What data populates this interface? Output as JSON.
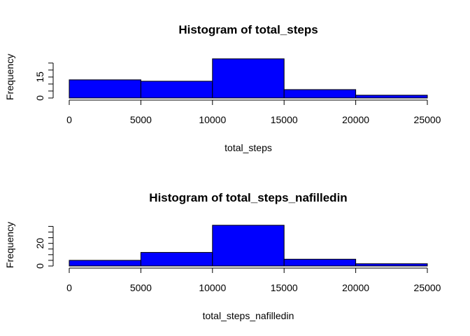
{
  "chart_data": [
    {
      "type": "bar",
      "title": "Histogram of total_steps",
      "xlabel": "total_steps",
      "ylabel": "Frequency",
      "bins": [
        {
          "start": 0,
          "end": 5000,
          "count": 13
        },
        {
          "start": 5000,
          "end": 10000,
          "count": 12
        },
        {
          "start": 10000,
          "end": 15000,
          "count": 28
        },
        {
          "start": 15000,
          "end": 20000,
          "count": 6
        },
        {
          "start": 20000,
          "end": 25000,
          "count": 2
        }
      ],
      "x_ticks": [
        {
          "value": 0,
          "label": "0"
        },
        {
          "value": 5000,
          "label": "5000"
        },
        {
          "value": 10000,
          "label": "10000"
        },
        {
          "value": 15000,
          "label": "15000"
        },
        {
          "value": 20000,
          "label": "20000"
        },
        {
          "value": 25000,
          "label": "25000"
        }
      ],
      "y_ticks": [
        0,
        5,
        10,
        15,
        20,
        25
      ],
      "y_tick_labels": [
        {
          "value": 0,
          "label": "0"
        },
        {
          "value": 15,
          "label": "15"
        }
      ],
      "xlim": [
        0,
        25000
      ],
      "ylim": [
        0,
        28
      ],
      "bar_color": "#0000ff",
      "grid": false,
      "legend": "none"
    },
    {
      "type": "bar",
      "title": "Histogram of total_steps_nafilledin",
      "xlabel": "total_steps_nafilledin",
      "ylabel": "Frequency",
      "bins": [
        {
          "start": 0,
          "end": 5000,
          "count": 5
        },
        {
          "start": 5000,
          "end": 10000,
          "count": 12
        },
        {
          "start": 10000,
          "end": 15000,
          "count": 36
        },
        {
          "start": 15000,
          "end": 20000,
          "count": 6
        },
        {
          "start": 20000,
          "end": 25000,
          "count": 2
        }
      ],
      "x_ticks": [
        {
          "value": 0,
          "label": "0"
        },
        {
          "value": 5000,
          "label": "5000"
        },
        {
          "value": 10000,
          "label": "10000"
        },
        {
          "value": 15000,
          "label": "15000"
        },
        {
          "value": 20000,
          "label": "20000"
        },
        {
          "value": 25000,
          "label": "25000"
        }
      ],
      "y_ticks": [
        0,
        5,
        10,
        15,
        20,
        25,
        30,
        35
      ],
      "y_tick_labels": [
        {
          "value": 0,
          "label": "0"
        },
        {
          "value": 20,
          "label": "20"
        }
      ],
      "xlim": [
        0,
        25000
      ],
      "ylim": [
        0,
        36
      ],
      "bar_color": "#0000ff",
      "grid": false,
      "legend": "none"
    }
  ]
}
